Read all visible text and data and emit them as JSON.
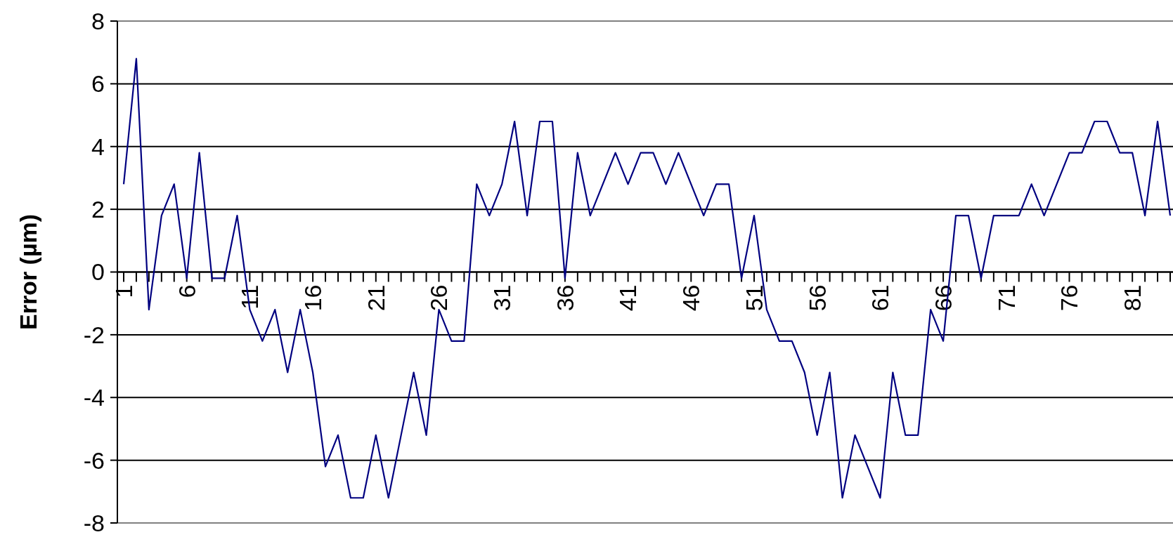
{
  "chart_data": {
    "type": "line",
    "ylabel": "Error (µm)",
    "categories": [
      "1",
      null,
      null,
      null,
      null,
      "6",
      null,
      null,
      null,
      null,
      "11",
      null,
      null,
      null,
      null,
      "16",
      null,
      null,
      null,
      null,
      "21",
      null,
      null,
      null,
      null,
      "26",
      null,
      null,
      null,
      null,
      "31",
      null,
      null,
      null,
      null,
      "36",
      null,
      null,
      null,
      null,
      "41",
      null,
      null,
      null,
      null,
      "46",
      null,
      null,
      null,
      null,
      "51",
      null,
      null,
      null,
      null,
      "56",
      null,
      null,
      null,
      null,
      "61",
      null,
      null,
      null,
      null,
      "66",
      null,
      null,
      null,
      null,
      "71",
      null,
      null,
      null,
      null,
      "76",
      null,
      null,
      null,
      null,
      "81",
      null,
      null,
      null
    ],
    "series": [
      {
        "color": "#000080",
        "values": [
          2.8,
          6.8,
          -1.2,
          1.8,
          2.8,
          -0.2,
          3.8,
          -0.2,
          -0.2,
          1.8,
          -1.2,
          -2.2,
          -1.2,
          -3.2,
          -1.2,
          -3.2,
          -6.2,
          -5.2,
          -7.2,
          -7.2,
          -5.2,
          -7.2,
          -5.2,
          -3.2,
          -5.2,
          -1.2,
          -2.2,
          -2.2,
          2.8,
          1.8,
          2.8,
          4.8,
          1.8,
          4.8,
          4.8,
          -0.2,
          3.8,
          1.8,
          2.8,
          3.8,
          2.8,
          3.8,
          3.8,
          2.8,
          3.8,
          2.8,
          1.8,
          2.8,
          2.8,
          -0.2,
          1.8,
          -1.2,
          -2.2,
          -2.2,
          -3.2,
          -5.2,
          -3.2,
          -7.2,
          -5.2,
          -6.2,
          -7.2,
          -3.2,
          -5.2,
          -5.2,
          -1.2,
          -2.2,
          1.8,
          1.8,
          -0.2,
          1.8,
          1.8,
          1.8,
          2.8,
          1.8,
          2.8,
          3.8,
          3.8,
          4.8,
          4.8,
          3.8,
          3.8,
          1.8,
          4.8,
          1.8
        ]
      }
    ],
    "ylim": [
      -8,
      8
    ],
    "yticks": [
      -8,
      -6,
      -4,
      -2,
      0,
      2,
      4,
      6,
      8
    ],
    "grid": "y",
    "marker": "none",
    "line_style": "solid"
  }
}
